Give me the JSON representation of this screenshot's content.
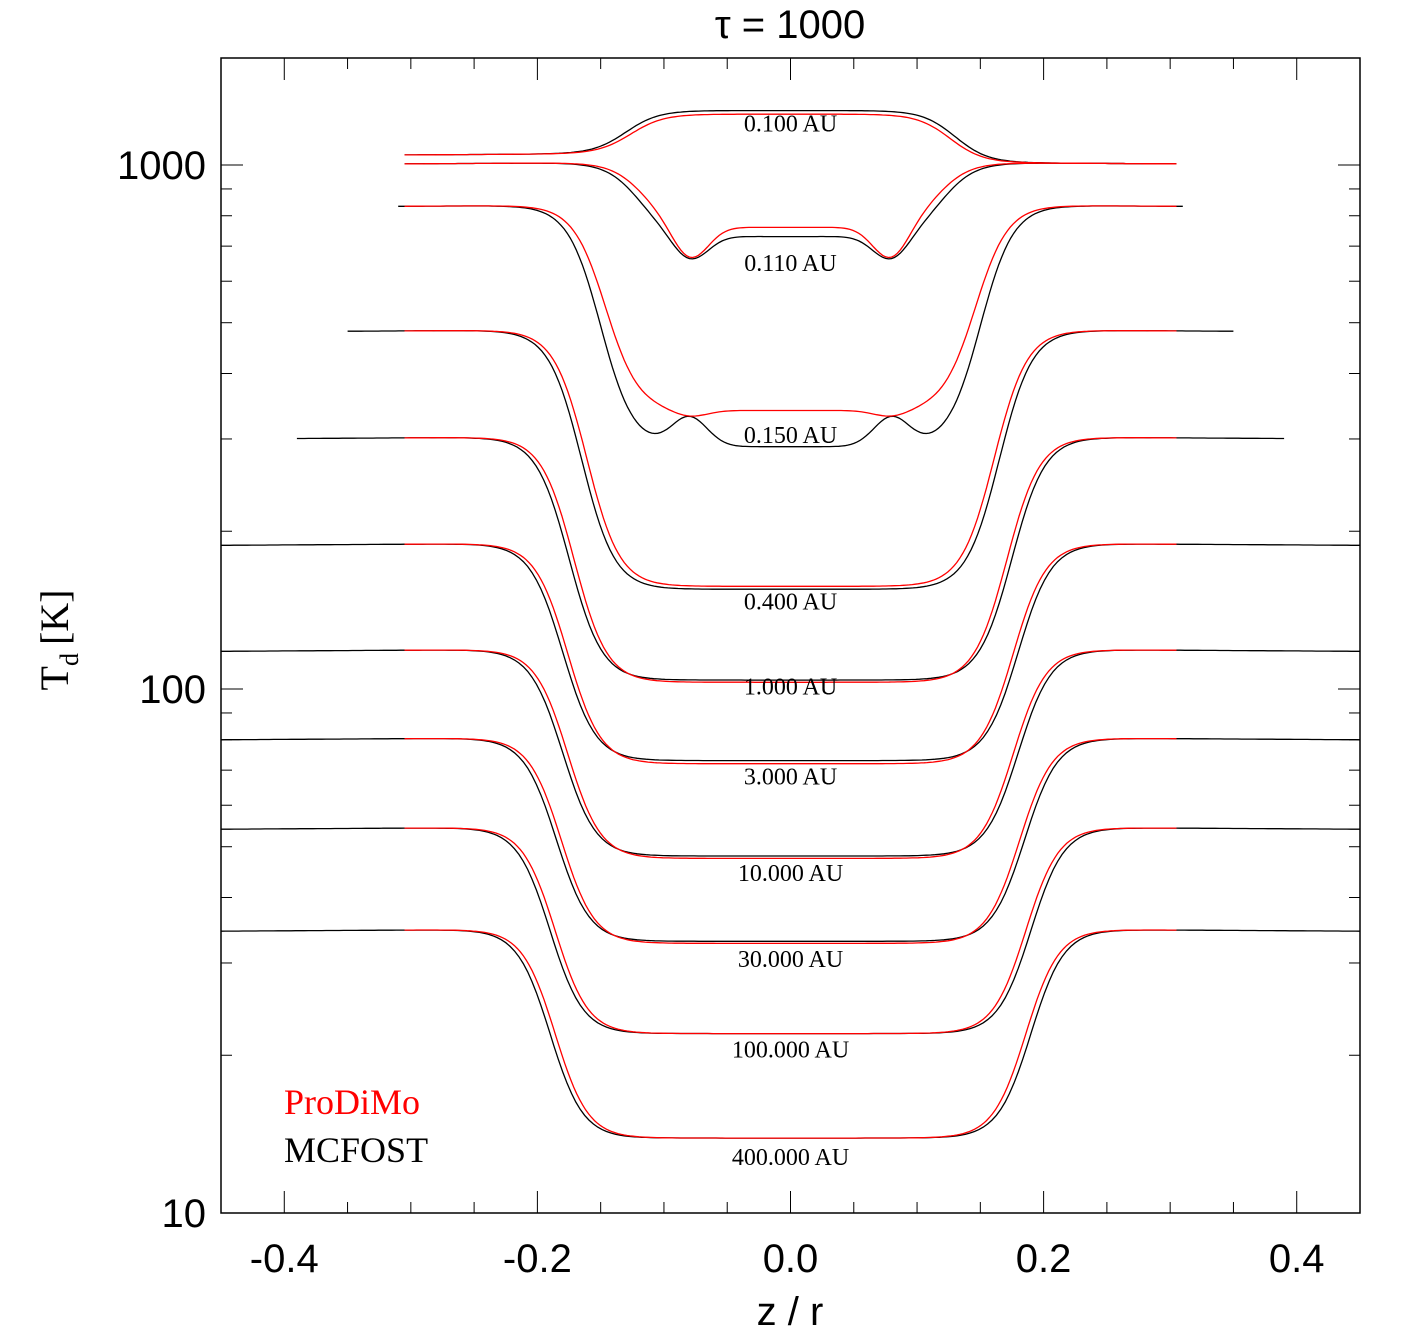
{
  "chart_data": {
    "type": "line",
    "title": "τ = 1000",
    "xlabel": "z / r",
    "ylabel": "T",
    "ylabel_subscript": "d",
    "ylabel_unit": "[K]",
    "xlim": [
      -0.45,
      0.45
    ],
    "ylim": [
      10,
      1600
    ],
    "yscale": "log",
    "xticks": [
      -0.4,
      -0.2,
      0.0,
      0.2,
      0.4
    ],
    "xtick_labels": [
      "-0.4",
      "-0.2",
      "0.0",
      "0.2",
      "0.4"
    ],
    "yticks": [
      10,
      100,
      1000
    ],
    "ytick_labels": [
      "10",
      "100",
      "1000"
    ],
    "grid": false,
    "legend": {
      "position": "bottom-left",
      "entries": [
        {
          "name": "ProDiMo",
          "color": "#ff0000"
        },
        {
          "name": "MCFOST",
          "color": "#000000"
        }
      ]
    },
    "series_colors": {
      "ProDiMo": "#ff0000",
      "MCFOST": "#000000"
    },
    "curves": [
      {
        "label": "0.100 AU",
        "label_value": 1200,
        "xmin": -0.305,
        "xmax": 0.305,
        "outer": [
          1040,
          1000
        ],
        "center": 1270,
        "center_prodimo": 1250,
        "edge": 0.13
      },
      {
        "label": "0.110 AU",
        "label_value": 650,
        "xmin": -0.305,
        "xmax": 0.305,
        "outer": [
          1000,
          1000
        ],
        "center": 730,
        "center_prodimo": 760,
        "trough": 650,
        "edge": 0.12
      },
      {
        "label": "0.150 AU",
        "label_value": 305,
        "xmin": -0.31,
        "xmax": 0.31,
        "outer": [
          830,
          830
        ],
        "center": 290,
        "center_prodimo": 340,
        "trough": 330,
        "edge": 0.15
      },
      {
        "label": "0.400 AU",
        "label_value": 147,
        "xmin": -0.35,
        "xmax": 0.35,
        "outer": [
          480,
          480
        ],
        "center": 155,
        "center_prodimo": 157,
        "edge": 0.165
      },
      {
        "label": "1.000 AU",
        "label_value": 101,
        "xmin": -0.39,
        "xmax": 0.39,
        "outer": [
          300,
          300
        ],
        "center": 104,
        "center_prodimo": 103,
        "edge": 0.175
      },
      {
        "label": "3.000 AU",
        "label_value": 68,
        "xmin": -0.45,
        "xmax": 0.45,
        "outer": [
          188,
          188
        ],
        "center": 73,
        "center_prodimo": 72,
        "edge": 0.18
      },
      {
        "label": "10.000 AU",
        "label_value": 44.5,
        "xmin": -0.45,
        "xmax": 0.45,
        "outer": [
          118,
          118
        ],
        "center": 48,
        "center_prodimo": 47.5,
        "edge": 0.18
      },
      {
        "label": "30.000 AU",
        "label_value": 30.5,
        "xmin": -0.45,
        "xmax": 0.45,
        "outer": [
          80,
          80
        ],
        "center": 33,
        "center_prodimo": 32.7,
        "edge": 0.185
      },
      {
        "label": "100.000 AU",
        "label_value": 20.5,
        "xmin": -0.45,
        "xmax": 0.45,
        "outer": [
          54,
          54
        ],
        "center": 22,
        "center_prodimo": 22,
        "edge": 0.19
      },
      {
        "label": "400.000 AU",
        "label_value": 12.8,
        "xmin": -0.45,
        "xmax": 0.45,
        "outer": [
          34.5,
          34.5
        ],
        "center": 13.9,
        "center_prodimo": 13.9,
        "edge": 0.19
      }
    ]
  }
}
